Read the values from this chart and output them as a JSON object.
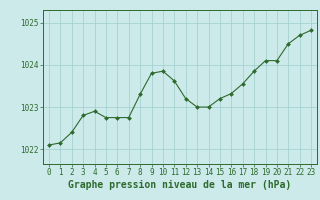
{
  "x": [
    0,
    1,
    2,
    3,
    4,
    5,
    6,
    7,
    8,
    9,
    10,
    11,
    12,
    13,
    14,
    15,
    16,
    17,
    18,
    19,
    20,
    21,
    22,
    23
  ],
  "y": [
    1022.1,
    1022.15,
    1022.4,
    1022.8,
    1022.9,
    1022.75,
    1022.75,
    1022.75,
    1023.3,
    1023.8,
    1023.85,
    1023.62,
    1023.2,
    1023.0,
    1023.0,
    1023.2,
    1023.32,
    1023.55,
    1023.85,
    1024.1,
    1024.1,
    1024.5,
    1024.7,
    1024.82
  ],
  "line_color": "#2d6a2d",
  "marker_color": "#2d6a2d",
  "bg_color": "#cdeaea",
  "grid_color": "#9ecece",
  "axis_color": "#2d6a2d",
  "tick_label_color": "#2d6a2d",
  "xlabel": "Graphe pression niveau de la mer (hPa)",
  "xlabel_color": "#2d6a2d",
  "xlabel_fontsize": 7,
  "tick_fontsize": 5.5,
  "ylim": [
    1021.65,
    1025.3
  ],
  "yticks": [
    1022,
    1023,
    1024,
    1025
  ],
  "xticks": [
    0,
    1,
    2,
    3,
    4,
    5,
    6,
    7,
    8,
    9,
    10,
    11,
    12,
    13,
    14,
    15,
    16,
    17,
    18,
    19,
    20,
    21,
    22,
    23
  ],
  "grid_linewidth": 0.5,
  "line_linewidth": 0.8,
  "marker_size": 2.0,
  "marker_style": "D"
}
